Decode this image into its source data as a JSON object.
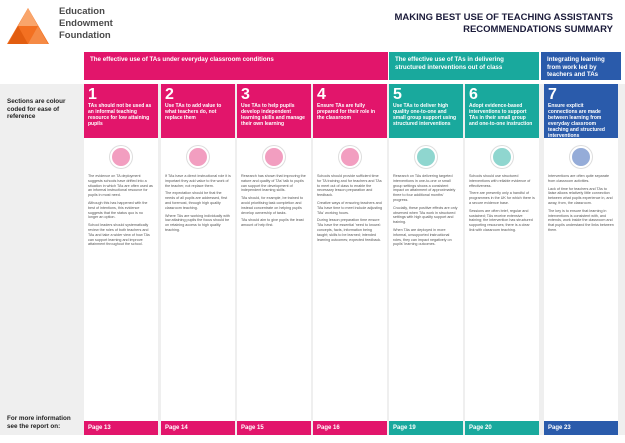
{
  "logo": {
    "line1": "Education",
    "line2": "Endowment",
    "line3": "Foundation",
    "color": "#f37021"
  },
  "title": {
    "line1": "MAKING BEST USE OF TEACHING ASSISTANTS",
    "line2": "RECOMMENDATIONS SUMMARY"
  },
  "bands": {
    "pink": "The effective use of TAs under everyday classroom conditions",
    "teal": "The effective use of TAs in delivering structured interventions out of class",
    "blue": "Integrating learning from work led by teachers and TAs"
  },
  "sidebar": {
    "note": "Sections are colour coded for ease of reference",
    "pages": "For more information see the report on:"
  },
  "colors": {
    "pink": "#e2156b",
    "teal": "#19a99d",
    "blue": "#2a5bab"
  },
  "columns": [
    {
      "num": "1",
      "title": "TAs should not be used as an informal teaching resource for low attaining pupils",
      "icon": "star-badge-icon",
      "body": [
        "The evidence on TA deployment suggests schools have drifted into a situation in which TAs are often used as an informal instructional resource for pupils in most need.",
        "Although this has happened with the best of intentions, this evidence suggests that the status quo is no longer an option.",
        "School leaders should systematically review the roles of both teachers and TAs and take a wider view of how TAs can support learning and improve attainment throughout the school."
      ],
      "page": "Page 13"
    },
    {
      "num": "2",
      "title": "Use TAs to add value to what teachers do, not replace them",
      "icon": "plus-badge-icon",
      "body": [
        "If TAs have a direct instructional role it is important they add value to the work of the teacher, not replace them.",
        "The expectation should be that the needs of all pupils are addressed, first and foremost, through high quality classroom teaching.",
        "Where TAs are working individually with low attaining pupils the focus should be on retaining access to high quality teaching."
      ],
      "page": "Page 14"
    },
    {
      "num": "3",
      "title": "Use TAs to help pupils develop independent learning skills and manage their own learning",
      "icon": "brain-icon",
      "body": [
        "Research has shown that improving the nature and quality of TAs' talk to pupils can support the development of independent learning skills.",
        "TAs should, for example, be trained to avoid prioritising task completion and instead concentrate on helping pupils develop ownership of tasks.",
        "TAs should aim to give pupils the least amount of help first."
      ],
      "page": "Page 15"
    },
    {
      "num": "4",
      "title": "Ensure TAs are fully prepared for their role in the classroom",
      "icon": "clipboard-icon",
      "body": [
        "Schools should provide sufficient time for TA training and for teachers and TAs to meet out of class to enable the necessary lesson preparation and feedback.",
        "Creative ways of ensuring teachers and TAs have time to meet include adjusting TAs' working hours.",
        "During lesson preparation time ensure TAs have the essential 'need to knows': concepts, facts, information being taught; skills to be learned; intended learning outcomes; expected feedback."
      ],
      "page": "Page 16"
    },
    {
      "num": "5",
      "title": "Use TAs to deliver high quality one-to-one and small group support using structured interventions",
      "icon": "group-icon",
      "body": [
        "Research on TAs delivering targeted interventions in one-to-one or small group settings shows a consistent impact on attainment of approximately three to four additional months' progress.",
        "Crucially, these positive effects are only observed when TAs work in structured settings with high quality support and training.",
        "When TAs are deployed in more informal, unsupported instructional roles, they can impact negatively on pupils' learning outcomes."
      ],
      "page": "Page 19"
    },
    {
      "num": "6",
      "title": "Adopt evidence-based interventions to support TAs in their small group and one-to-one instruction",
      "icon": "chart-icon",
      "body": [
        "Schools should use structured interventions with reliable evidence of effectiveness.",
        "There are presently only a handful of programmes in the UK for which there is a secure evidence base.",
        "Sessions are often brief, regular and sustained; TAs receive extensive training; the intervention has structured supporting resources; there is a clear link with classroom teaching."
      ],
      "page": "Page 20"
    },
    {
      "num": "7",
      "title": "Ensure explicit connections are made between learning from everyday classroom teaching and structured interventions",
      "icon": "link-icon",
      "body": [
        "Interventions are often quite separate from classroom activities.",
        "Lack of time for teachers and TAs to liaise allows relatively little connection between what pupils experience in, and away, from, the classroom.",
        "The key is to ensure that learning in interventions is consistent with, and extends, work inside the classroom and that pupils understand the links between them."
      ],
      "page": "Page 23"
    }
  ]
}
